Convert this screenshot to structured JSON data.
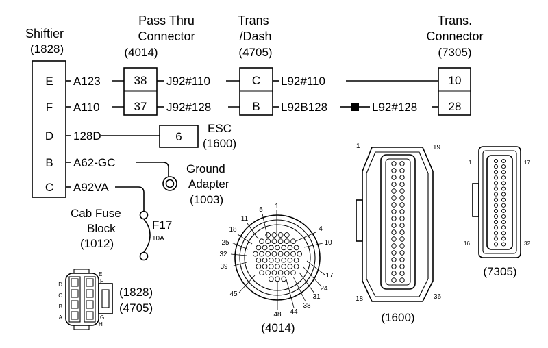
{
  "shiftier": {
    "title": "Shiftier",
    "number": "(1828)",
    "pins": [
      "E",
      "F",
      "D",
      "B",
      "C"
    ]
  },
  "passthru": {
    "line1": "Pass Thru",
    "line2": "Connector",
    "number": "(4014)",
    "pins": [
      "38",
      "37"
    ]
  },
  "transdash": {
    "line1": "Trans",
    "line2": "/Dash",
    "number": "(4705)",
    "pins": [
      "C",
      "B"
    ]
  },
  "transconn": {
    "line1": "Trans.",
    "line2": "Connector",
    "number": "(7305)",
    "pins": [
      "10",
      "28"
    ]
  },
  "wires": {
    "a123": "A123",
    "a110": "A110",
    "j92_110": "J92#110",
    "j92_128": "J92#128",
    "l92_110": "L92#110",
    "l92b128": "L92B128",
    "l92_128": "L92#128",
    "w128d": "128D",
    "a62gc": "A62-GC",
    "a92va": "A92VA"
  },
  "esc": {
    "pin": "6",
    "label": "ESC",
    "number": "(1600)"
  },
  "ground": {
    "line1": "Ground",
    "line2": "Adapter",
    "number": "(1003)"
  },
  "cabfuse": {
    "line1": "Cab Fuse",
    "line2": "Block",
    "number": "(1012)",
    "fuse": "F17",
    "rating": "10A"
  },
  "conn4014": {
    "caption": "(4014)",
    "pin_labels": [
      "1",
      "5",
      "11",
      "18",
      "25",
      "32",
      "39",
      "45",
      "48",
      "44",
      "38",
      "31",
      "24",
      "17",
      "10",
      "4"
    ]
  },
  "conn1600": {
    "caption": "(1600)",
    "corners": [
      "1",
      "19",
      "18",
      "36"
    ]
  },
  "conn7305": {
    "caption": "(7305)",
    "corners": [
      "1",
      "17",
      "16",
      "32"
    ]
  },
  "conn1828": {
    "numbers": [
      "(1828)",
      "(4705)"
    ],
    "letters_left": [
      "D",
      "C",
      "B",
      "A"
    ],
    "letters_right": [
      "E",
      "F",
      "G",
      "H"
    ]
  }
}
